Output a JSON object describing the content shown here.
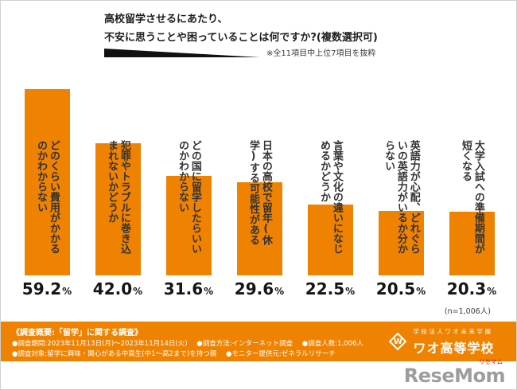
{
  "header": {
    "title_line1": "高校留学させるにあたり、",
    "title_line2": "不安に思うことや困っていることは何ですか?(複数選択可)",
    "note": "※全11項目中上位7項目を抜粋"
  },
  "chart_data": {
    "type": "bar",
    "title": "高校留学させるにあたり、不安に思うことや困っていることは何ですか?(複数選択可)",
    "categories": [
      "どのくらい費用がかかるのかわからない",
      "犯罪やトラブルに巻き込まれないかどうか",
      "どの国に留学したらいいのかわからない",
      "日本の高校で留年(休学)する可能性がある",
      "言葉や文化の違いになじめるかどうか",
      "英語力が心配、どれぐらいの英語力がいるか分からない",
      "大学入試への準備期間が短くなる"
    ],
    "values": [
      59.2,
      42.0,
      31.6,
      29.6,
      22.5,
      20.5,
      20.3
    ],
    "value_display": [
      "59.2",
      "42.0",
      "31.6",
      "29.6",
      "22.5",
      "20.5",
      "20.3"
    ],
    "unit": "%",
    "bar_color": "#ef8200",
    "ylim": [
      0,
      65
    ],
    "grid": false,
    "legend": "none",
    "sample": "(n=1,006人)"
  },
  "footer": {
    "heading": "《調査概要:「留学」に関する調査》",
    "row1": [
      "●調査期間:2023年11月13日(月)〜2023年11月14日(火)",
      "●調査方法:インターネット調査",
      "●調査人数:1,006人"
    ],
    "row2": [
      "●調査対象:留学に興味・関心がある中高生(中1〜高2まで)を持つ親",
      "●モニター提供元:ゼネラルリサーチ"
    ],
    "school_org": "学校法人ワオ未来学園",
    "school_name": "ワオ高等学校",
    "school_logo_letter": "W"
  },
  "branding": {
    "resemom": "ReseMom",
    "resemom_kana": "リセマム"
  }
}
